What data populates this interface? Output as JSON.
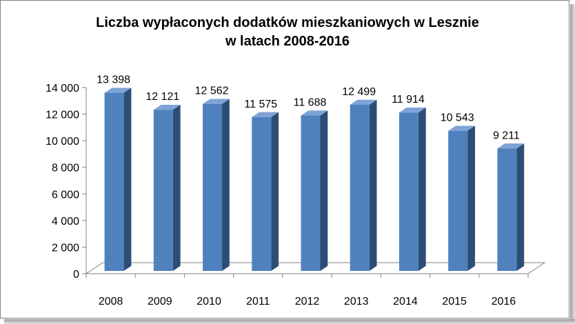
{
  "chart_data": {
    "type": "bar",
    "title_line1": "Liczba wypłaconych dodatków  mieszkaniowych w Lesznie",
    "title_line2": "w latach 2008-2016",
    "categories": [
      "2008",
      "2009",
      "2010",
      "2011",
      "2012",
      "2013",
      "2014",
      "2015",
      "2016"
    ],
    "values": [
      13398,
      12121,
      12562,
      11575,
      11688,
      12499,
      11914,
      10543,
      9211
    ],
    "value_labels": [
      "13 398",
      "12 121",
      "12 562",
      "11 575",
      "11 688",
      "12 499",
      "11 914",
      "10 543",
      "9 211"
    ],
    "y_ticks": [
      0,
      2000,
      4000,
      6000,
      8000,
      10000,
      12000,
      14000
    ],
    "y_tick_labels": [
      "0",
      "2 000",
      "4 000",
      "6 000",
      "8 000",
      "10 000",
      "12 000",
      "14 000"
    ],
    "ylim": [
      0,
      14000
    ],
    "xlabel": "",
    "ylabel": "",
    "grid": false,
    "legend": "none",
    "style": "3d-column",
    "colors": {
      "bar_front": "#4f81bd",
      "bar_side": "#2c4d75",
      "bar_top": "#7ea3d6",
      "floor": "#ffffff",
      "axis": "#808080"
    }
  }
}
